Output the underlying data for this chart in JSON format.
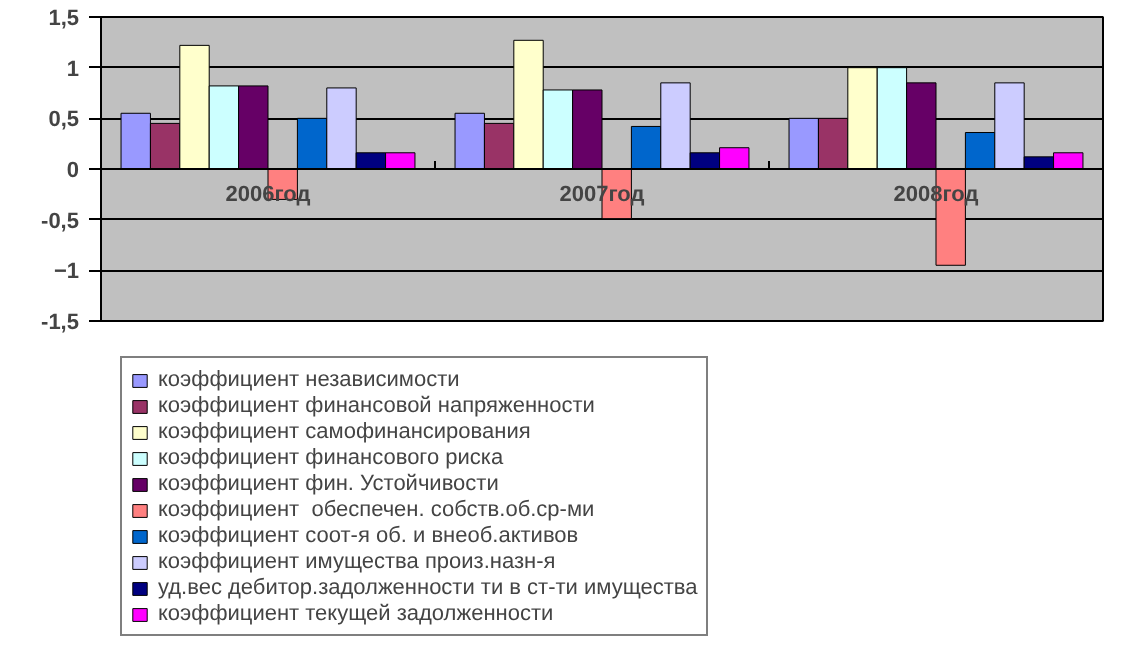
{
  "chart_data": {
    "type": "bar",
    "categories": [
      "2006год",
      "2007год",
      "2008год"
    ],
    "series": [
      {
        "name": "коэффициент независимости",
        "color": "#9999ff",
        "values": [
          0.55,
          0.55,
          0.5
        ]
      },
      {
        "name": "коэффициент финансовой напряженности",
        "color": "#993366",
        "values": [
          0.45,
          0.45,
          0.5
        ]
      },
      {
        "name": "коэффициент самофинансирования",
        "color": "#ffffcc",
        "values": [
          1.22,
          1.27,
          1.0
        ]
      },
      {
        "name": "коэффициент финансового риска",
        "color": "#ccffff",
        "values": [
          0.82,
          0.78,
          1.0
        ]
      },
      {
        "name": "коэффициент фин. Устойчивости",
        "color": "#660066",
        "values": [
          0.82,
          0.78,
          0.85
        ]
      },
      {
        "name": "коэффициент  обеспечен. собств.об.ср-ми",
        "color": "#ff8080",
        "values": [
          -0.3,
          -0.49,
          -0.95
        ]
      },
      {
        "name": "коэффициент соот-я об. и внеоб.активов",
        "color": "#0066cc",
        "values": [
          0.5,
          0.42,
          0.36
        ]
      },
      {
        "name": "коэффициент имущества произ.назн-я",
        "color": "#ccccff",
        "values": [
          0.8,
          0.85,
          0.85
        ]
      },
      {
        "name": "уд.вес дебитор.задолженности ти в ст-ти имущества",
        "color": "#000080",
        "values": [
          0.16,
          0.16,
          0.12
        ]
      },
      {
        "name": "коэффициент текущей задолженности",
        "color": "#ff00ff",
        "values": [
          0.16,
          0.21,
          0.16
        ]
      }
    ],
    "ylim": [
      -1.5,
      1.5
    ],
    "yticks": [
      {
        "value": -1.5,
        "label": "-1,5"
      },
      -1,
      {
        "value": -0.5,
        "label": "-0,5"
      },
      0,
      {
        "value": 0.5,
        "label": "0,5"
      },
      1,
      {
        "value": 1.5,
        "label": "1,5"
      }
    ],
    "grid": "y",
    "legend": "bottom"
  }
}
